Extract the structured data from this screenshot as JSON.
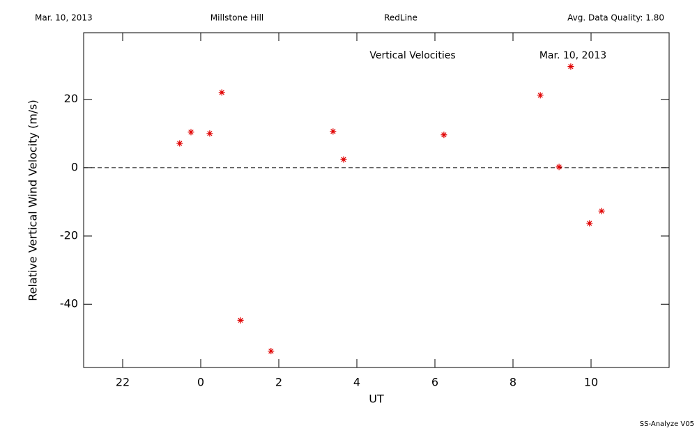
{
  "header": {
    "date": "Mar. 10, 2013",
    "site": "Millstone Hill",
    "line": "RedLine",
    "quality": "Avg. Data Quality: 1.80"
  },
  "footer": "SS-Analyze V05",
  "chart_data": {
    "type": "scatter",
    "annotations": [
      "Vertical Velocities",
      "Mar. 10, 2013"
    ],
    "x_label": "UT",
    "y_label": "Relative Vertical Wind Velocity (m/s)",
    "x": [
      -0.54,
      -0.25,
      0.23,
      0.54,
      1.02,
      1.8,
      3.39,
      3.66,
      6.23,
      8.7,
      9.18,
      9.48,
      9.96,
      10.27
    ],
    "values": [
      7.1,
      10.4,
      10.0,
      22.0,
      -44.7,
      -53.7,
      10.6,
      2.4,
      9.6,
      21.2,
      0.2,
      29.6,
      -16.3,
      -12.7
    ],
    "color": "#e00000",
    "xlim": [
      -3,
      12
    ],
    "xticks": [
      {
        "value": -2,
        "label": "22"
      },
      0,
      2,
      4,
      6,
      8,
      10
    ],
    "ylim": [
      -58.5,
      39.5
    ],
    "yticks": [
      -40,
      -20,
      0,
      20
    ],
    "hline": 0
  }
}
